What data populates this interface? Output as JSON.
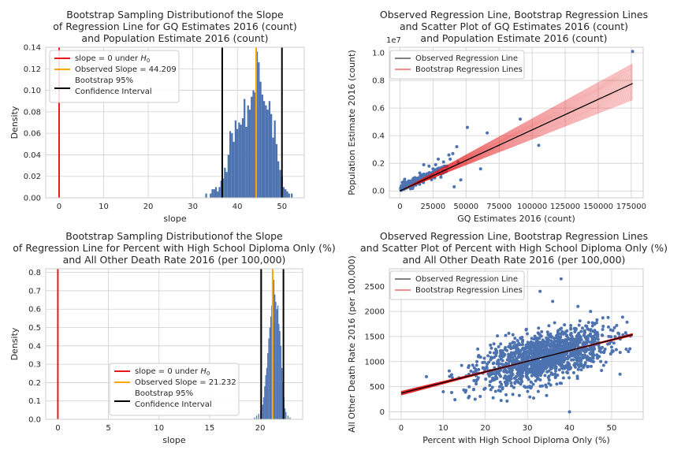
{
  "chart_data": [
    {
      "type": "histogram",
      "title_lines": [
        "Bootstrap Sampling Distributionof the Slope",
        "of Regression Line for GQ Estimates 2016 (count)",
        "and Population Estimate 2016 (count)"
      ],
      "xlabel": "slope",
      "ylabel": "Density",
      "xlim": [
        -3,
        55
      ],
      "ylim": [
        0,
        0.14
      ],
      "xticks": [
        "0",
        "10",
        "20",
        "30",
        "40",
        "50"
      ],
      "xtick_values": [
        0,
        10,
        20,
        30,
        40,
        50
      ],
      "yticks": [
        "0.00",
        "0.02",
        "0.04",
        "0.06",
        "0.08",
        "0.10",
        "0.12",
        "0.14"
      ],
      "ytick_values": [
        0,
        0.02,
        0.04,
        0.06,
        0.08,
        0.1,
        0.12,
        0.14
      ],
      "bar_color": "#4c72b0",
      "bins": [
        {
          "x": 32.8,
          "y": 0.004
        },
        {
          "x": 33.8,
          "y": 0.004
        },
        {
          "x": 34.2,
          "y": 0.008
        },
        {
          "x": 34.6,
          "y": 0.008
        },
        {
          "x": 35.0,
          "y": 0.01
        },
        {
          "x": 35.4,
          "y": 0.006
        },
        {
          "x": 35.8,
          "y": 0.01
        },
        {
          "x": 36.2,
          "y": 0.016
        },
        {
          "x": 36.6,
          "y": 0.018
        },
        {
          "x": 37.0,
          "y": 0.028
        },
        {
          "x": 37.4,
          "y": 0.024
        },
        {
          "x": 37.8,
          "y": 0.04
        },
        {
          "x": 38.2,
          "y": 0.062
        },
        {
          "x": 38.6,
          "y": 0.06
        },
        {
          "x": 39.0,
          "y": 0.052
        },
        {
          "x": 39.4,
          "y": 0.072
        },
        {
          "x": 39.8,
          "y": 0.064
        },
        {
          "x": 40.2,
          "y": 0.07
        },
        {
          "x": 40.6,
          "y": 0.068
        },
        {
          "x": 41.0,
          "y": 0.074
        },
        {
          "x": 41.4,
          "y": 0.092
        },
        {
          "x": 41.8,
          "y": 0.066
        },
        {
          "x": 42.2,
          "y": 0.086
        },
        {
          "x": 42.6,
          "y": 0.082
        },
        {
          "x": 43.0,
          "y": 0.094
        },
        {
          "x": 43.4,
          "y": 0.1
        },
        {
          "x": 43.8,
          "y": 0.098
        },
        {
          "x": 44.2,
          "y": 0.136
        },
        {
          "x": 44.6,
          "y": 0.126
        },
        {
          "x": 45.0,
          "y": 0.108
        },
        {
          "x": 45.4,
          "y": 0.096
        },
        {
          "x": 45.8,
          "y": 0.09
        },
        {
          "x": 46.2,
          "y": 0.086
        },
        {
          "x": 46.6,
          "y": 0.082
        },
        {
          "x": 47.0,
          "y": 0.09
        },
        {
          "x": 47.4,
          "y": 0.078
        },
        {
          "x": 47.8,
          "y": 0.056
        },
        {
          "x": 48.2,
          "y": 0.072
        },
        {
          "x": 48.6,
          "y": 0.05
        },
        {
          "x": 49.0,
          "y": 0.034
        },
        {
          "x": 49.4,
          "y": 0.026
        },
        {
          "x": 49.8,
          "y": 0.02
        },
        {
          "x": 50.2,
          "y": 0.01
        },
        {
          "x": 50.6,
          "y": 0.008
        },
        {
          "x": 51.0,
          "y": 0.006
        },
        {
          "x": 51.4,
          "y": 0.004
        },
        {
          "x": 52.0,
          "y": 0.004
        }
      ],
      "bin_width": 0.4,
      "vlines": [
        {
          "x": 0,
          "color": "#e41a1c",
          "label": "slope = 0 under ",
          "label_italic": "H",
          "label_sub": "0"
        },
        {
          "x": 44.209,
          "color": "#ffa500",
          "label": "Observed Slope = 44.209"
        },
        {
          "x": 36.6,
          "color": "#000000"
        },
        {
          "x": 50.0,
          "color": "#000000"
        }
      ],
      "legend": {
        "placement": "top-left",
        "entries": [
          {
            "color": "#e41a1c",
            "text": "slope = 0 under ",
            "italic": "H",
            "sub": "0"
          },
          {
            "color": "#ffa500",
            "text": "Observed Slope = 44.209"
          },
          {
            "color": "#000000",
            "text": "Bootstrap 95%",
            "text2": "Confidence Interval"
          }
        ]
      }
    },
    {
      "type": "scatter",
      "title_lines": [
        "Observed Regression Line, Bootstrap Regression Lines",
        "and Scatter Plot of GQ Estimates 2016 (count)",
        "and Population Estimate 2016 (count)"
      ],
      "xlabel": "GQ Estimates 2016 (count)",
      "ylabel": "Population Estimate 2016 (count)",
      "offset_text": "1e7",
      "xlim": [
        -8000,
        184000
      ],
      "ylim": [
        -0.05,
        1.04
      ],
      "xticks": [
        "0",
        "25000",
        "50000",
        "75000",
        "100000",
        "125000",
        "150000",
        "175000"
      ],
      "xtick_values": [
        0,
        25000,
        50000,
        75000,
        100000,
        125000,
        150000,
        175000
      ],
      "yticks": [
        "0.0",
        "0.2",
        "0.4",
        "0.6",
        "0.8",
        "1.0"
      ],
      "ytick_values": [
        0,
        0.2,
        0.4,
        0.6,
        0.8,
        1.0
      ],
      "point_color": "#4c72b0",
      "observed_line": {
        "intercept": 0.0,
        "slope_per_100k": 0.442,
        "x_range": [
          0,
          176000
        ],
        "color": "#000000"
      },
      "bootstrap_fan": {
        "x_end": 176000,
        "y_end_low": 0.66,
        "y_end_high": 0.92,
        "color": "#e41a1c"
      },
      "outliers": [
        {
          "x": 176000,
          "y": 1.01
        },
        {
          "x": 91000,
          "y": 0.52
        },
        {
          "x": 66000,
          "y": 0.42
        },
        {
          "x": 51000,
          "y": 0.46
        },
        {
          "x": 105000,
          "y": 0.33
        },
        {
          "x": 61000,
          "y": 0.16
        },
        {
          "x": 44000,
          "y": 0.21
        },
        {
          "x": 43000,
          "y": 0.32
        },
        {
          "x": 40000,
          "y": 0.27
        },
        {
          "x": 37000,
          "y": 0.26
        },
        {
          "x": 38000,
          "y": 0.23
        },
        {
          "x": 33000,
          "y": 0.21
        },
        {
          "x": 29000,
          "y": 0.23
        },
        {
          "x": 27000,
          "y": 0.19
        },
        {
          "x": 22000,
          "y": 0.18
        },
        {
          "x": 35000,
          "y": 0.14
        },
        {
          "x": 31000,
          "y": 0.1
        },
        {
          "x": 46000,
          "y": 0.08
        },
        {
          "x": 41000,
          "y": 0.03
        },
        {
          "x": 25000,
          "y": 0.16
        },
        {
          "x": 20000,
          "y": 0.12
        },
        {
          "x": 18000,
          "y": 0.19
        },
        {
          "x": 15000,
          "y": 0.13
        }
      ],
      "legend": {
        "placement": "top-left",
        "entries": [
          {
            "color": "#000000",
            "text": "Observed Regression Line"
          },
          {
            "color": "#e41a1c",
            "text": "Bootstrap Regression Lines"
          }
        ]
      }
    },
    {
      "type": "histogram",
      "title_lines": [
        "Bootstrap Sampling Distributionof the Slope",
        "of Regression Line for Percent with High School Diploma Only (%)",
        "and All Other Death Rate 2016 (per 100,000)"
      ],
      "xlabel": "slope",
      "ylabel": "Density",
      "xlim": [
        -1.2,
        24.2
      ],
      "ylim": [
        0,
        0.82
      ],
      "xticks": [
        "0",
        "5",
        "10",
        "15",
        "20"
      ],
      "xtick_values": [
        0,
        5,
        10,
        15,
        20
      ],
      "yticks": [
        "0.0",
        "0.1",
        "0.2",
        "0.3",
        "0.4",
        "0.5",
        "0.6",
        "0.7",
        "0.8"
      ],
      "ytick_values": [
        0,
        0.1,
        0.2,
        0.3,
        0.4,
        0.5,
        0.6,
        0.7,
        0.8
      ],
      "bar_color": "#4c72b0",
      "bins": [
        {
          "x": 19.4,
          "y": 0.01
        },
        {
          "x": 19.6,
          "y": 0.02
        },
        {
          "x": 19.8,
          "y": 0.03
        },
        {
          "x": 20.0,
          "y": 0.05
        },
        {
          "x": 20.2,
          "y": 0.08
        },
        {
          "x": 20.3,
          "y": 0.12
        },
        {
          "x": 20.4,
          "y": 0.18
        },
        {
          "x": 20.5,
          "y": 0.24
        },
        {
          "x": 20.6,
          "y": 0.28
        },
        {
          "x": 20.7,
          "y": 0.36
        },
        {
          "x": 20.8,
          "y": 0.44
        },
        {
          "x": 20.9,
          "y": 0.5
        },
        {
          "x": 21.0,
          "y": 0.56
        },
        {
          "x": 21.1,
          "y": 0.62
        },
        {
          "x": 21.2,
          "y": 0.74
        },
        {
          "x": 21.3,
          "y": 0.76
        },
        {
          "x": 21.4,
          "y": 0.68
        },
        {
          "x": 21.5,
          "y": 0.64
        },
        {
          "x": 21.6,
          "y": 0.6
        },
        {
          "x": 21.7,
          "y": 0.62
        },
        {
          "x": 21.8,
          "y": 0.52
        },
        {
          "x": 21.9,
          "y": 0.48
        },
        {
          "x": 22.0,
          "y": 0.4
        },
        {
          "x": 22.1,
          "y": 0.28
        },
        {
          "x": 22.2,
          "y": 0.2
        },
        {
          "x": 22.3,
          "y": 0.12
        },
        {
          "x": 22.4,
          "y": 0.06
        },
        {
          "x": 22.5,
          "y": 0.04
        },
        {
          "x": 22.7,
          "y": 0.02
        },
        {
          "x": 22.9,
          "y": 0.01
        }
      ],
      "bin_width": 0.1,
      "vlines": [
        {
          "x": 0,
          "color": "#e41a1c"
        },
        {
          "x": 21.232,
          "color": "#ffa500"
        },
        {
          "x": 20.1,
          "color": "#000000"
        },
        {
          "x": 22.3,
          "color": "#000000"
        }
      ],
      "legend": {
        "placement": "lower-center",
        "entries": [
          {
            "color": "#e41a1c",
            "text": "slope = 0 under ",
            "italic": "H",
            "sub": "0"
          },
          {
            "color": "#ffa500",
            "text": "Observed Slope = 21.232"
          },
          {
            "color": "#000000",
            "text": "Bootstrap 95%",
            "text2": "Confidence Interval"
          }
        ]
      }
    },
    {
      "type": "scatter",
      "title_lines": [
        "Observed Regression Line, Bootstrap Regression Lines",
        "and Scatter Plot of Percent with High School Diploma Only (%)",
        "and All Other Death Rate 2016 (per 100,000)"
      ],
      "xlabel": "Percent with High School Diploma Only (%)",
      "ylabel": "All Other Death Rate 2016 (per 100,000)",
      "xlim": [
        -2.8,
        57.5
      ],
      "ylim": [
        -150,
        2850
      ],
      "xticks": [
        "0",
        "10",
        "20",
        "30",
        "40",
        "50"
      ],
      "xtick_values": [
        0,
        10,
        20,
        30,
        40,
        50
      ],
      "yticks": [
        "0",
        "500",
        "1000",
        "1500",
        "2000",
        "2500"
      ],
      "ytick_values": [
        0,
        500,
        1000,
        1500,
        2000,
        2500
      ],
      "point_color": "#4c72b0",
      "cloud": {
        "x_center": 34,
        "x_spread": 7.5,
        "y_center": 1050,
        "y_spread": 230,
        "x_min": 8,
        "x_max": 55
      },
      "observed_line": {
        "intercept": 370,
        "slope": 21.232,
        "x_range": [
          0,
          55
        ],
        "color": "#000000"
      },
      "bootstrap_fan": {
        "x_end": 55,
        "spread": 40,
        "color": "#e41a1c"
      },
      "outliers": [
        {
          "x": 38,
          "y": 2650
        },
        {
          "x": 33,
          "y": 2400
        },
        {
          "x": 40,
          "y": 0
        },
        {
          "x": 6,
          "y": 700
        },
        {
          "x": 10,
          "y": 400
        },
        {
          "x": 12,
          "y": 740
        },
        {
          "x": 17,
          "y": 930
        },
        {
          "x": 18,
          "y": 1000
        },
        {
          "x": 16,
          "y": 280
        },
        {
          "x": 54,
          "y": 1200
        },
        {
          "x": 52,
          "y": 750
        },
        {
          "x": 45,
          "y": 2000
        },
        {
          "x": 42,
          "y": 2100
        },
        {
          "x": 36,
          "y": 2200
        }
      ],
      "legend": {
        "placement": "top-left",
        "entries": [
          {
            "color": "#000000",
            "text": "Observed Regression Line"
          },
          {
            "color": "#e41a1c",
            "text": "Bootstrap Regression Lines"
          }
        ]
      }
    }
  ]
}
